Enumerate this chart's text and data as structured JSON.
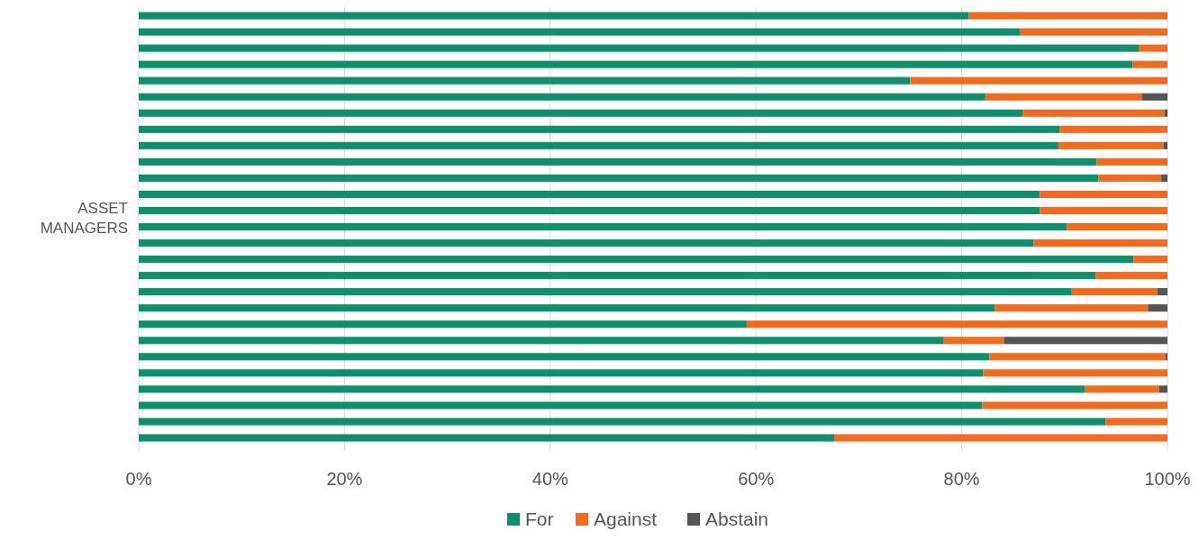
{
  "chart_data": {
    "type": "bar",
    "orientation": "horizontal",
    "stacked": true,
    "ylabel": "ASSET MANAGERS",
    "categories": [
      null,
      null,
      null,
      null,
      null,
      null,
      null,
      null,
      null,
      null,
      null,
      null,
      null,
      null,
      null,
      null,
      null,
      null,
      null,
      null,
      null,
      null,
      null,
      null,
      null,
      null,
      null
    ],
    "series": [
      {
        "name": "For",
        "color": "#0e8f6e",
        "values": [
          80.7,
          85.7,
          97.2,
          96.6,
          75.0,
          82.3,
          85.9,
          89.5,
          89.4,
          93.1,
          93.3,
          87.6,
          87.6,
          90.2,
          87.0,
          96.7,
          93.0,
          90.7,
          83.2,
          59.1,
          78.2,
          82.7,
          82.1,
          92.0,
          82.0,
          94.0,
          67.6
        ]
      },
      {
        "name": "Against",
        "color": "#f26b1d",
        "values": [
          19.3,
          14.3,
          2.8,
          3.4,
          25.0,
          15.2,
          13.8,
          10.5,
          10.2,
          6.9,
          6.1,
          12.4,
          12.4,
          9.8,
          13.0,
          3.3,
          7.0,
          8.3,
          14.9,
          40.9,
          5.9,
          17.1,
          17.9,
          7.2,
          18.0,
          6.0,
          32.4
        ]
      },
      {
        "name": "Abstain",
        "color": "#555555",
        "values": [
          0,
          0,
          0,
          0,
          0,
          2.5,
          0.3,
          0,
          0.4,
          0,
          0.6,
          0,
          0,
          0,
          0,
          0,
          0,
          1.0,
          1.9,
          0,
          15.9,
          0.2,
          0,
          0.8,
          0,
          0,
          0
        ]
      }
    ],
    "xlim": [
      0,
      100
    ],
    "xticks": [
      {
        "value": 0,
        "label": "0%"
      },
      {
        "value": 20,
        "label": "20%"
      },
      {
        "value": 40,
        "label": "40%"
      },
      {
        "value": 60,
        "label": "60%"
      },
      {
        "value": 80,
        "label": "80%"
      },
      {
        "value": 100,
        "label": "100%"
      }
    ],
    "grid": "x",
    "legend": "bottom"
  }
}
